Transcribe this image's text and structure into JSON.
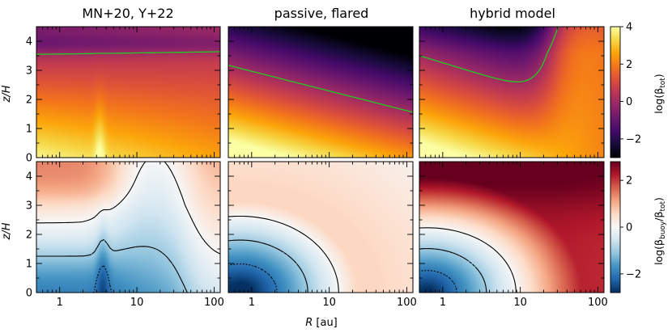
{
  "chart_data": {
    "type": "heatmap",
    "columns": [
      {
        "title": "MN+20, Y+22"
      },
      {
        "title": "passive, flared"
      },
      {
        "title": "hybrid model"
      }
    ],
    "x": {
      "label_prefix": "R",
      "label_suffix": "[au]",
      "scale": "log",
      "range": [
        0.5,
        120
      ],
      "ticks": [
        1,
        10,
        100
      ],
      "tick_labels": [
        "1",
        "10",
        "100"
      ]
    },
    "y": {
      "label": "z/H",
      "range": [
        0,
        4.5
      ],
      "ticks": [
        0,
        1,
        2,
        3,
        4
      ],
      "tick_labels": [
        "0",
        "1",
        "2",
        "3",
        "4"
      ]
    },
    "rows": [
      {
        "quantity": "log(β_tot)",
        "colorbar_label_main": "log(β",
        "colorbar_label_sub": "tot",
        "colorbar_label_end": ")",
        "colormap": "inferno",
        "range": [
          -3,
          4
        ],
        "ticks": [
          -2,
          0,
          2,
          4
        ],
        "tick_labels": [
          "−2",
          "0",
          "2",
          "4"
        ],
        "contour": {
          "level": 0,
          "color": "#22cc22"
        }
      },
      {
        "quantity": "log(β_buoy/β_tot)",
        "colorbar_label_main": "log(β",
        "colorbar_label_sub": "buoy",
        "colorbar_label_mid": "/β",
        "colorbar_label_sub2": "tot",
        "colorbar_label_end": ")",
        "colormap": "RdBu_r",
        "range": [
          -2.8,
          2.8
        ],
        "ticks": [
          -2,
          0,
          2
        ],
        "tick_labels": [
          "−2",
          "0",
          "2"
        ],
        "contours": [
          {
            "level": 0,
            "style": "solid"
          },
          {
            "level": -1,
            "style": "dashed"
          },
          {
            "level": -2,
            "style": "dotted"
          }
        ]
      }
    ]
  }
}
